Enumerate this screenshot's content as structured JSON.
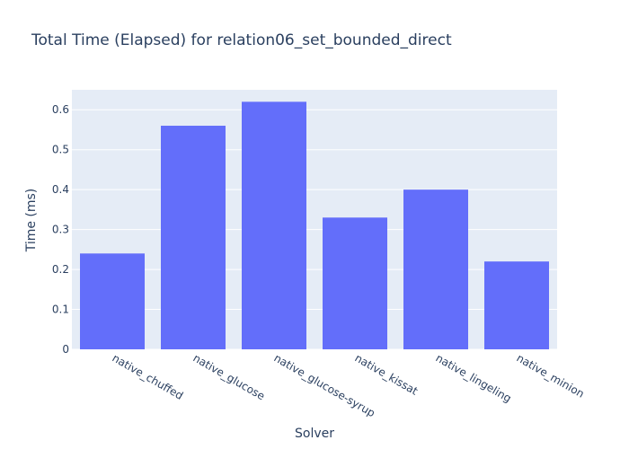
{
  "chart_data": {
    "type": "bar",
    "title": "Total Time (Elapsed) for relation06_set_bounded_direct",
    "xlabel": "Solver",
    "ylabel": "Time (ms)",
    "categories": [
      "native_chuffed",
      "native_glucose",
      "native_glucose-syrup",
      "native_kissat",
      "native_lingeling",
      "native_minion"
    ],
    "values": [
      0.24,
      0.56,
      0.62,
      0.33,
      0.4,
      0.22
    ],
    "ylim": [
      0,
      0.65
    ],
    "yticks": [
      0,
      0.1,
      0.2,
      0.3,
      0.4,
      0.5,
      0.6
    ],
    "ytick_labels": [
      "0",
      "0.1",
      "0.2",
      "0.3",
      "0.4",
      "0.5",
      "0.6"
    ],
    "grid": true,
    "legend": "none",
    "colors": {
      "bar": "#636efa",
      "plot_background": "#e5ecf6",
      "grid": "#ffffff",
      "text": "#2a3f5f"
    }
  }
}
